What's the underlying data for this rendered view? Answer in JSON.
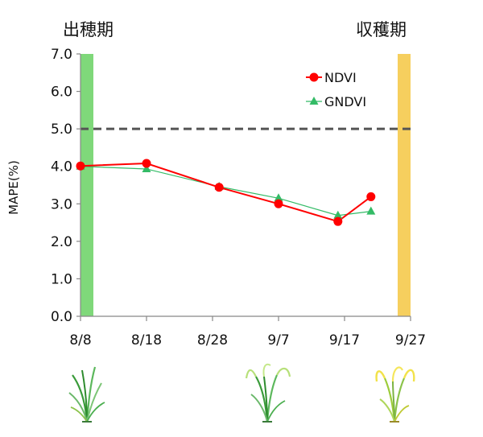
{
  "chart_data": {
    "type": "line",
    "ylabel": "MAPE(%)",
    "ylim": [
      0,
      7
    ],
    "y_ticks": [
      "0.0",
      "1.0",
      "2.0",
      "3.0",
      "4.0",
      "5.0",
      "6.0",
      "7.0"
    ],
    "x_ticks": [
      "8/8",
      "8/18",
      "8/28",
      "9/7",
      "9/17",
      "9/27"
    ],
    "x_range": [
      "8/8",
      "9/27"
    ],
    "grid": false,
    "legend_position": "top-right",
    "threshold": {
      "value": 5.0,
      "style": "dashed"
    },
    "stages": [
      {
        "label": "出穂期",
        "date": "8/8",
        "color": "#7fd87a"
      },
      {
        "label": "収穫期",
        "date": "9/27",
        "color": "#f6cf5e"
      }
    ],
    "series": [
      {
        "name": "NDVI",
        "marker": "circle",
        "color": "#ff0000",
        "points": [
          {
            "x": "8/8",
            "y": 4.01
          },
          {
            "x": "8/18",
            "y": 4.08
          },
          {
            "x": "8/29",
            "y": 3.44
          },
          {
            "x": "9/7",
            "y": 3.0
          },
          {
            "x": "9/16",
            "y": 2.53
          },
          {
            "x": "9/21",
            "y": 3.19
          }
        ]
      },
      {
        "name": "GNDVI",
        "marker": "triangle",
        "color": "#33bb66",
        "points": [
          {
            "x": "8/8",
            "y": 4.0
          },
          {
            "x": "8/18",
            "y": 3.93
          },
          {
            "x": "8/29",
            "y": 3.46
          },
          {
            "x": "9/7",
            "y": 3.15
          },
          {
            "x": "9/16",
            "y": 2.69
          },
          {
            "x": "9/21",
            "y": 2.8
          }
        ]
      }
    ]
  },
  "illustrations": [
    "rice-heading-icon",
    "rice-maturing-icon",
    "rice-harvest-icon"
  ]
}
